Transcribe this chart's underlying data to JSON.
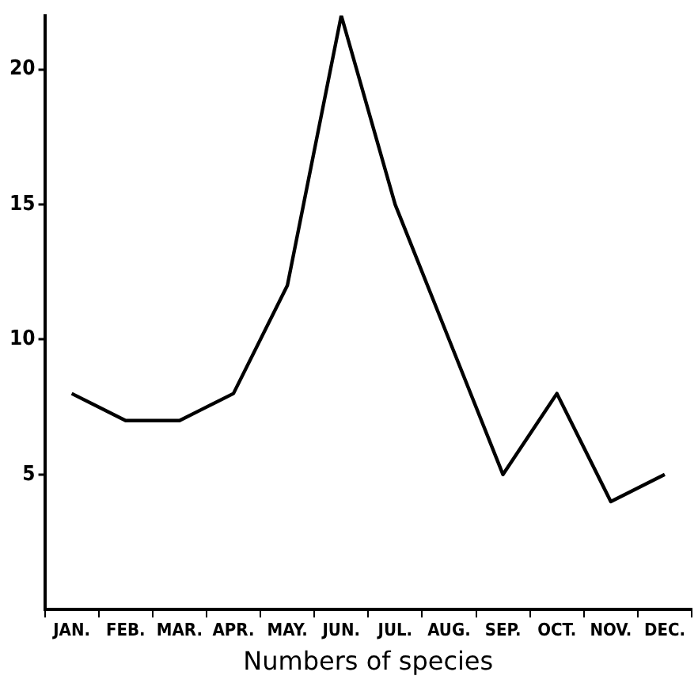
{
  "chart_data": {
    "type": "line",
    "xlabel": "Numbers of species",
    "categories": [
      "JAN.",
      "FEB.",
      "MAR.",
      "APR.",
      "MAY.",
      "JUN.",
      "JUL.",
      "AUG.",
      "SEP.",
      "OCT.",
      "NOV.",
      "DEC."
    ],
    "series": [
      {
        "color": "#000000",
        "values": [
          8,
          7,
          7,
          8,
          12,
          22,
          15,
          10,
          5,
          8,
          4,
          5
        ]
      }
    ],
    "ylim": [
      0,
      22
    ],
    "yticks": [
      5,
      10,
      15,
      20
    ],
    "grid": false,
    "legend": false,
    "marker": "none",
    "line_style": "solid"
  }
}
